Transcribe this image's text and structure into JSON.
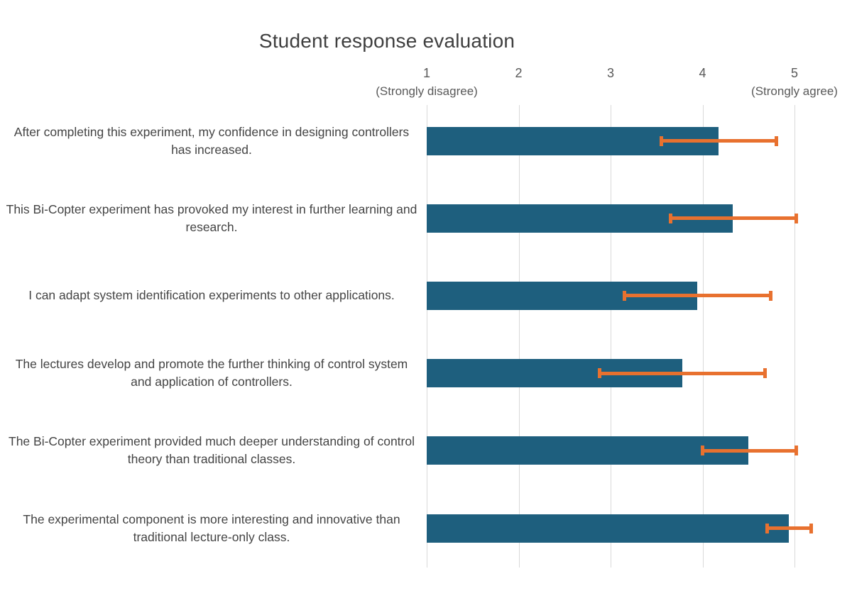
{
  "page": {
    "title": "Student response evaluation"
  },
  "axis": {
    "note_low": "(Strongly disagree)",
    "note_high": "(Strongly agree)"
  },
  "chart_data": {
    "type": "bar",
    "orientation": "horizontal",
    "title": "Student response evaluation",
    "xlabel": "",
    "ylabel": "",
    "xlim": [
      1,
      5
    ],
    "x_ticks": [
      1,
      2,
      3,
      4,
      5
    ],
    "x_tick_note_low": "(Strongly disagree)",
    "x_tick_note_high": "(Strongly agree)",
    "grid": true,
    "legend": "none",
    "categories": [
      "After completing this experiment, my confidence in designing controllers has increased.",
      "This Bi-Copter experiment has provoked my interest in further learning and research.",
      "I can adapt system identification experiments to other applications.",
      "The lectures develop and promote the further thinking of control system and application of controllers.",
      "The Bi-Copter experiment provided much deeper understanding of control theory than traditional classes.",
      "The experimental component is more interesting and innovative than traditional lecture-only class."
    ],
    "values": [
      4.17,
      4.33,
      3.94,
      3.78,
      4.5,
      4.94
    ],
    "error_low": [
      3.55,
      3.65,
      3.15,
      2.88,
      4.0,
      4.7
    ],
    "error_high": [
      4.8,
      5.02,
      4.74,
      4.68,
      5.02,
      5.18
    ],
    "colors": {
      "bar": "#1e5f7e",
      "error": "#e8712f",
      "grid": "#d9d9d9",
      "title_text": "#3f3f3f",
      "tick_text": "#595959",
      "label_text": "#444444"
    }
  }
}
